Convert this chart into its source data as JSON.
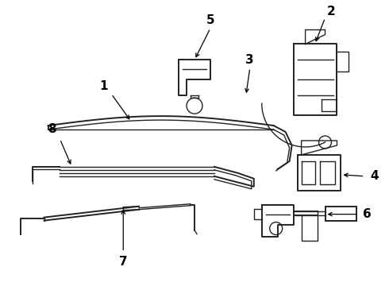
{
  "bg_color": "#ffffff",
  "line_color": "#222222",
  "label_color": "#000000",
  "figsize": [
    4.9,
    3.6
  ],
  "dpi": 100
}
